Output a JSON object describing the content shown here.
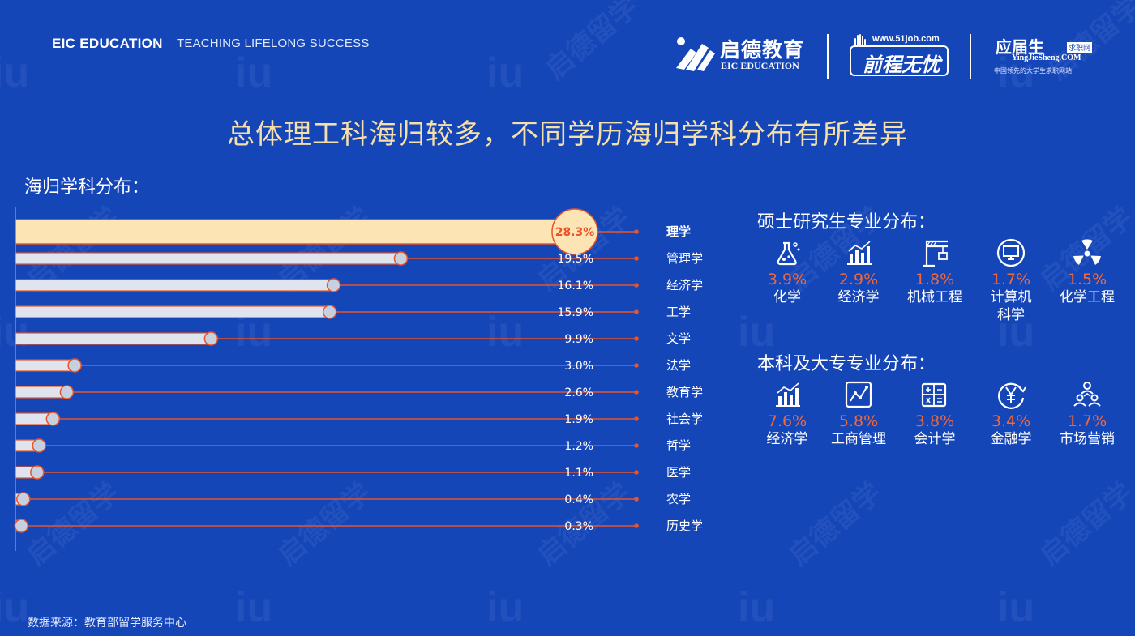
{
  "header": {
    "brand": "EIC EDUCATION",
    "tagline": "TEACHING LIFELONG SUCCESS",
    "logos": {
      "eic_cn": "启德教育",
      "eic_en": "EIC EDUCATION",
      "job51_url": "www.51job.com",
      "job51_name": "前程无忧",
      "yjs_cn": "应届生",
      "yjs_tag": "求职网",
      "yjs_url": "YingJieSheng.COM",
      "yjs_slogan": "中国领先的大学生求职网站"
    }
  },
  "title": "总体理工科海归较多，不同学历海归学科分布有所差异",
  "chart_section_title": "海归学科分布：",
  "chart_data": {
    "type": "bar",
    "orientation": "horizontal",
    "title": "海归学科分布：",
    "categories": [
      "理学",
      "管理学",
      "经济学",
      "工学",
      "文学",
      "法学",
      "教育学",
      "社会学",
      "哲学",
      "医学",
      "农学",
      "历史学"
    ],
    "values": [
      28.3,
      19.5,
      16.1,
      15.9,
      9.9,
      3.0,
      2.6,
      1.9,
      1.2,
      1.1,
      0.4,
      0.3
    ],
    "value_labels": [
      "28.3%",
      "19.5%",
      "16.1%",
      "15.9%",
      "9.9%",
      "3.0%",
      "2.6%",
      "1.9%",
      "1.2%",
      "1.1%",
      "0.4%",
      "0.3%"
    ],
    "unit": "%",
    "highlight_index": 0,
    "colors": {
      "bar": "#dfe4ee",
      "highlight": "#fde4b5",
      "accent": "#e8542a"
    }
  },
  "masters": {
    "title": "硕士研究生专业分布：",
    "items": [
      {
        "icon": "flask-icon",
        "value": "3.9%",
        "label": "化学"
      },
      {
        "icon": "bar-chart-icon",
        "value": "2.9%",
        "label": "经济学"
      },
      {
        "icon": "crane-icon",
        "value": "1.8%",
        "label": "机械工程"
      },
      {
        "icon": "computer-icon",
        "value": "1.7%",
        "label": "计算机\n科学"
      },
      {
        "icon": "radiation-icon",
        "value": "1.5%",
        "label": "化学工程"
      }
    ]
  },
  "bachelor": {
    "title": "本科及大专专业分布：",
    "items": [
      {
        "icon": "bar-chart-icon",
        "value": "7.6%",
        "label": "经济学"
      },
      {
        "icon": "line-chart-icon",
        "value": "5.8%",
        "label": "工商管理"
      },
      {
        "icon": "calculator-icon",
        "value": "3.8%",
        "label": "会计学"
      },
      {
        "icon": "yen-icon",
        "value": "3.4%",
        "label": "金融学"
      },
      {
        "icon": "people-icon",
        "value": "1.7%",
        "label": "市场营销"
      }
    ]
  },
  "source": "数据来源：教育部留学服务中心",
  "watermark": {
    "cn": "启德留学",
    "en": "EIC EDUCATION",
    "mark": "iu"
  }
}
